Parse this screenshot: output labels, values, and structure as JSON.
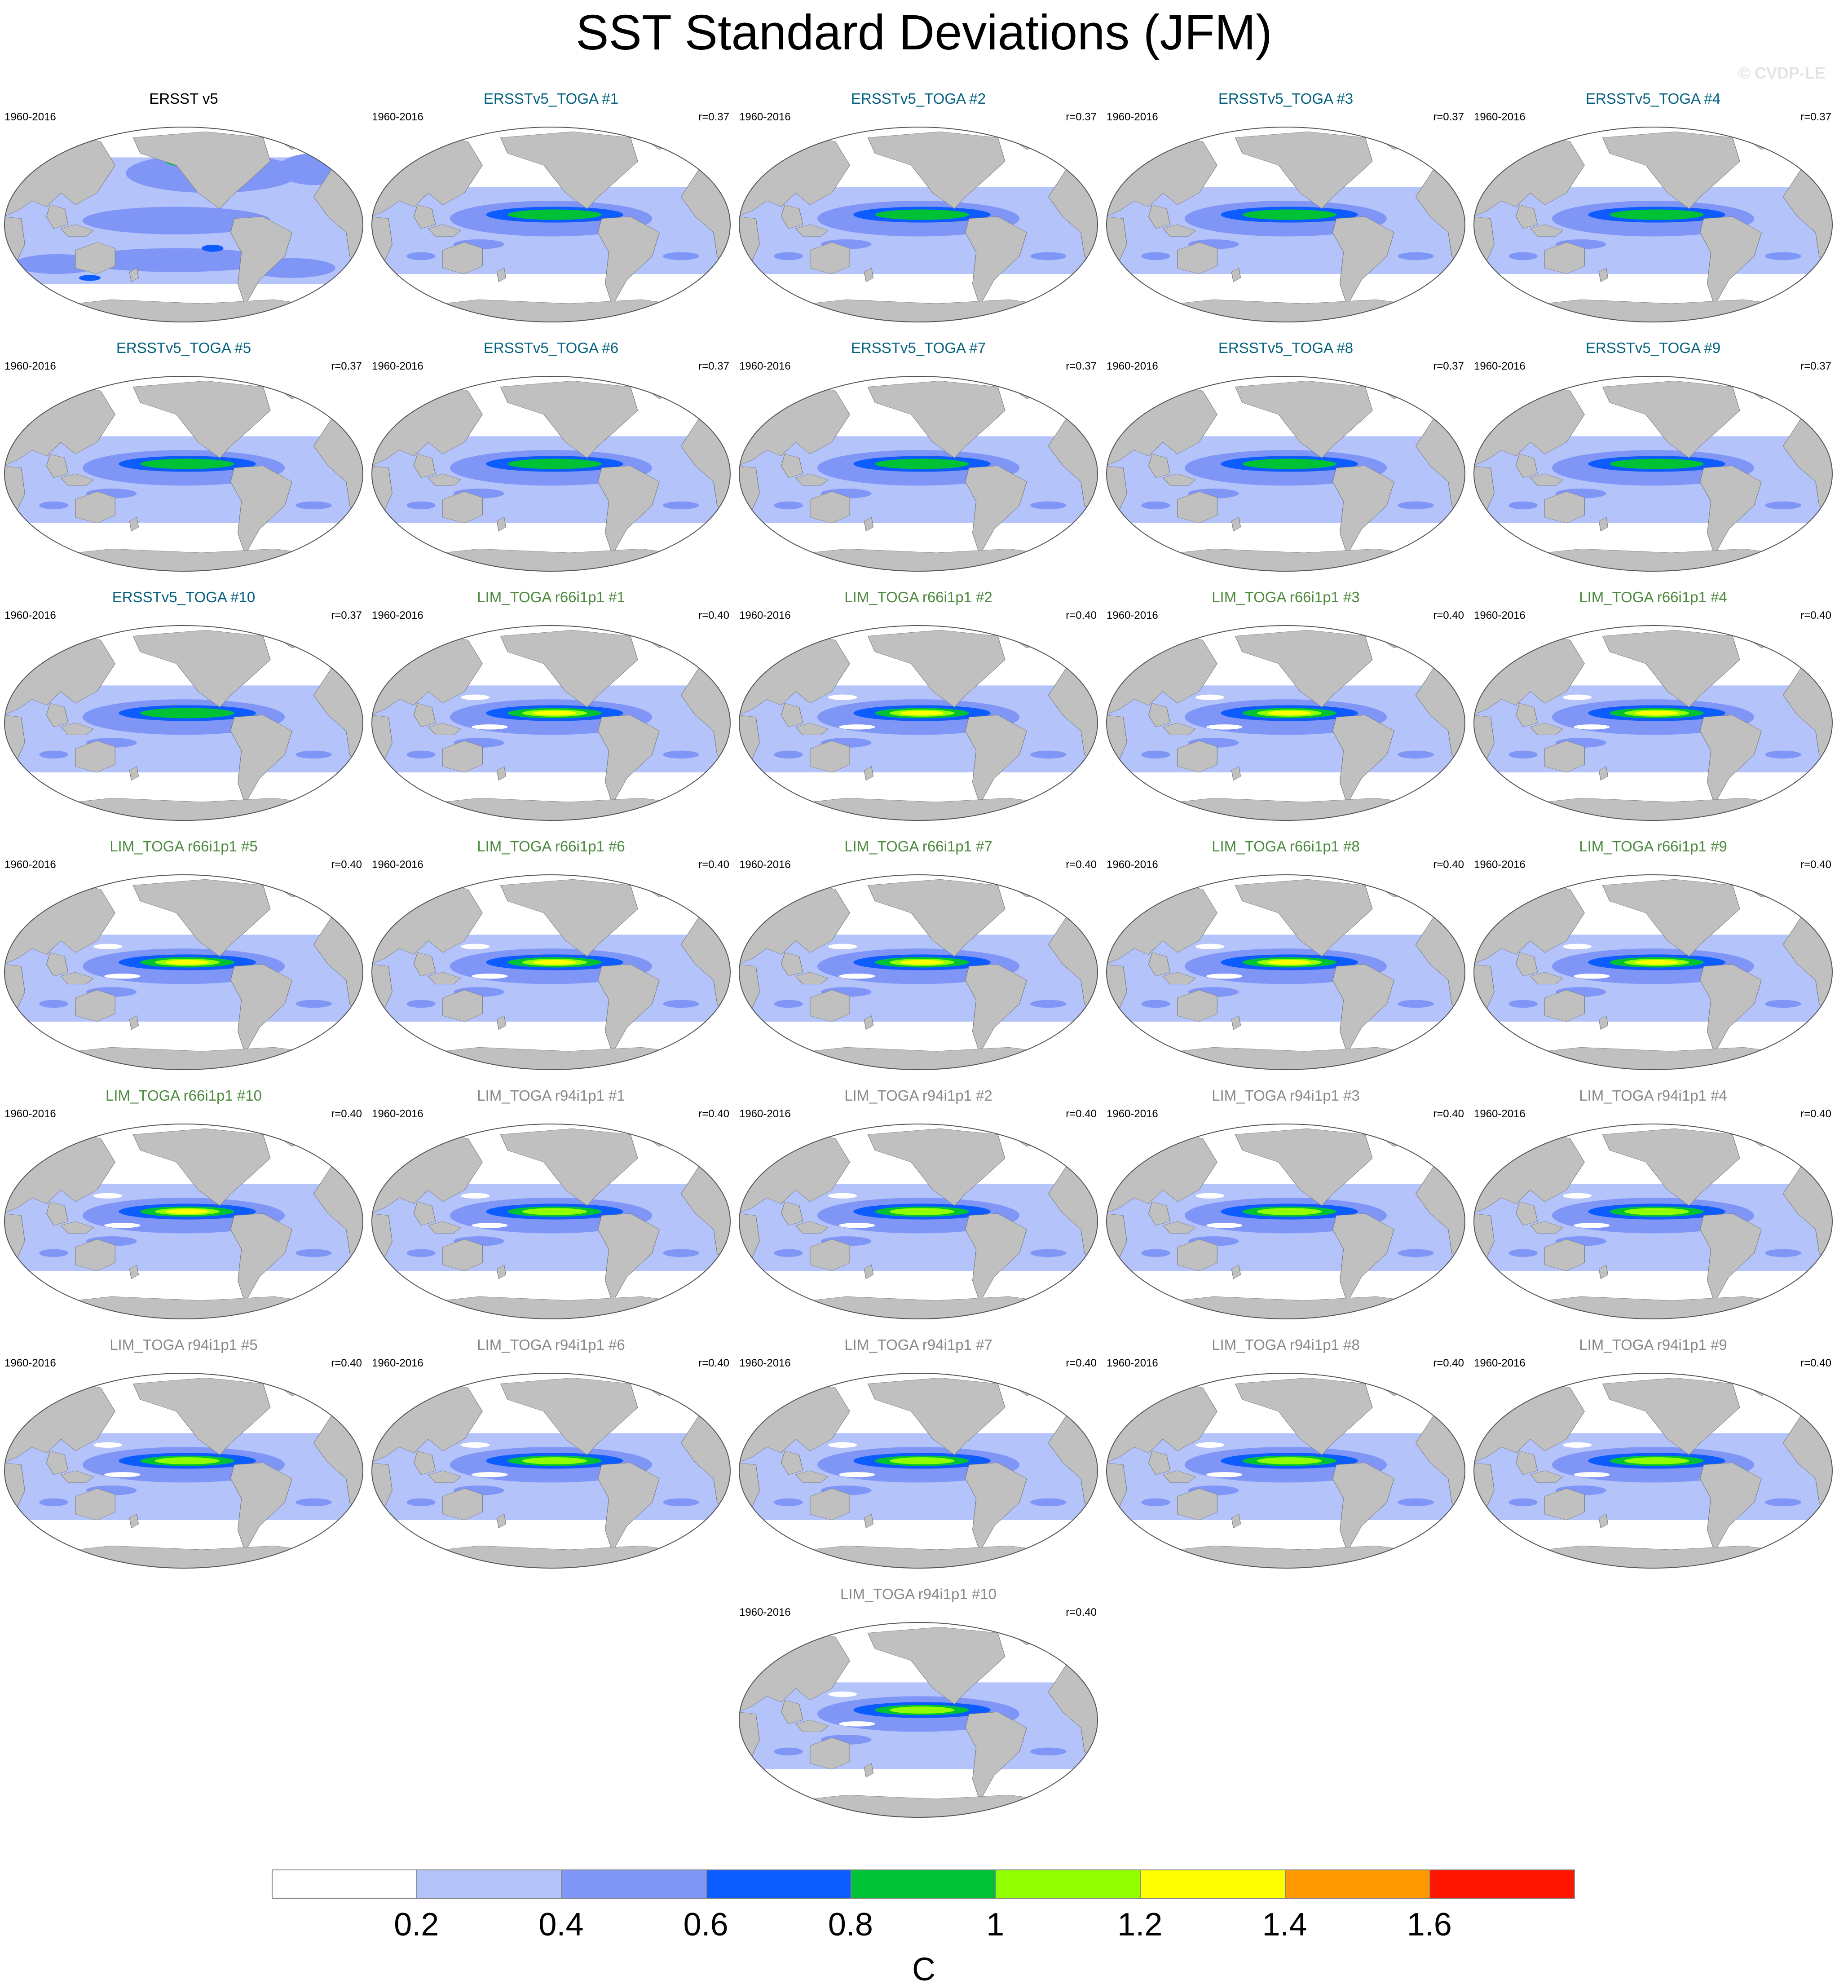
{
  "title": "SST Standard Deviations (JFM)",
  "watermark": "© CVDP-LE",
  "chart_data": {
    "type": "map_panel_grid",
    "title": "SST Standard Deviations (JFM)",
    "unit": "C",
    "colorbar": {
      "levels": [
        0.2,
        0.4,
        0.6,
        0.8,
        1,
        1.2,
        1.4,
        1.6
      ],
      "tick_labels": [
        "0.2",
        "0.4",
        "0.6",
        "0.8",
        "1",
        "1.2",
        "1.4",
        "1.6"
      ],
      "colors": [
        "#ffffff",
        "#b4c3fa",
        "#8096f7",
        "#0d5cff",
        "#00c234",
        "#92ff00",
        "#ffff00",
        "#ff9900",
        "#ff1500"
      ]
    },
    "land_color": "#c0c0c0",
    "group_colors": {
      "observation": "#000000",
      "ERSSTv5_TOGA": "#05627f",
      "LIM_TOGA r66i1p1": "#4c8a3e",
      "LIM_TOGA r94i1p1": "#888888"
    },
    "panels": [
      {
        "title": "ERSST v5",
        "group": "observation",
        "years": "1960-2016",
        "r": ""
      },
      {
        "title": "ERSSTv5_TOGA #1",
        "group": "ERSSTv5_TOGA",
        "years": "1960-2016",
        "r": "r=0.37"
      },
      {
        "title": "ERSSTv5_TOGA #2",
        "group": "ERSSTv5_TOGA",
        "years": "1960-2016",
        "r": "r=0.37"
      },
      {
        "title": "ERSSTv5_TOGA #3",
        "group": "ERSSTv5_TOGA",
        "years": "1960-2016",
        "r": "r=0.37"
      },
      {
        "title": "ERSSTv5_TOGA #4",
        "group": "ERSSTv5_TOGA",
        "years": "1960-2016",
        "r": "r=0.37"
      },
      {
        "title": "ERSSTv5_TOGA #5",
        "group": "ERSSTv5_TOGA",
        "years": "1960-2016",
        "r": "r=0.37"
      },
      {
        "title": "ERSSTv5_TOGA #6",
        "group": "ERSSTv5_TOGA",
        "years": "1960-2016",
        "r": "r=0.37"
      },
      {
        "title": "ERSSTv5_TOGA #7",
        "group": "ERSSTv5_TOGA",
        "years": "1960-2016",
        "r": "r=0.37"
      },
      {
        "title": "ERSSTv5_TOGA #8",
        "group": "ERSSTv5_TOGA",
        "years": "1960-2016",
        "r": "r=0.37"
      },
      {
        "title": "ERSSTv5_TOGA #9",
        "group": "ERSSTv5_TOGA",
        "years": "1960-2016",
        "r": "r=0.37"
      },
      {
        "title": "ERSSTv5_TOGA #10",
        "group": "ERSSTv5_TOGA",
        "years": "1960-2016",
        "r": "r=0.37"
      },
      {
        "title": "LIM_TOGA r66i1p1 #1",
        "group": "LIM_TOGA r66i1p1",
        "years": "1960-2016",
        "r": "r=0.40"
      },
      {
        "title": "LIM_TOGA r66i1p1 #2",
        "group": "LIM_TOGA r66i1p1",
        "years": "1960-2016",
        "r": "r=0.40"
      },
      {
        "title": "LIM_TOGA r66i1p1 #3",
        "group": "LIM_TOGA r66i1p1",
        "years": "1960-2016",
        "r": "r=0.40"
      },
      {
        "title": "LIM_TOGA r66i1p1 #4",
        "group": "LIM_TOGA r66i1p1",
        "years": "1960-2016",
        "r": "r=0.40"
      },
      {
        "title": "LIM_TOGA r66i1p1 #5",
        "group": "LIM_TOGA r66i1p1",
        "years": "1960-2016",
        "r": "r=0.40"
      },
      {
        "title": "LIM_TOGA r66i1p1 #6",
        "group": "LIM_TOGA r66i1p1",
        "years": "1960-2016",
        "r": "r=0.40"
      },
      {
        "title": "LIM_TOGA r66i1p1 #7",
        "group": "LIM_TOGA r66i1p1",
        "years": "1960-2016",
        "r": "r=0.40"
      },
      {
        "title": "LIM_TOGA r66i1p1 #8",
        "group": "LIM_TOGA r66i1p1",
        "years": "1960-2016",
        "r": "r=0.40"
      },
      {
        "title": "LIM_TOGA r66i1p1 #9",
        "group": "LIM_TOGA r66i1p1",
        "years": "1960-2016",
        "r": "r=0.40"
      },
      {
        "title": "LIM_TOGA r66i1p1 #10",
        "group": "LIM_TOGA r66i1p1",
        "years": "1960-2016",
        "r": "r=0.40"
      },
      {
        "title": "LIM_TOGA r94i1p1 #1",
        "group": "LIM_TOGA r94i1p1",
        "years": "1960-2016",
        "r": "r=0.40"
      },
      {
        "title": "LIM_TOGA r94i1p1 #2",
        "group": "LIM_TOGA r94i1p1",
        "years": "1960-2016",
        "r": "r=0.40"
      },
      {
        "title": "LIM_TOGA r94i1p1 #3",
        "group": "LIM_TOGA r94i1p1",
        "years": "1960-2016",
        "r": "r=0.40"
      },
      {
        "title": "LIM_TOGA r94i1p1 #4",
        "group": "LIM_TOGA r94i1p1",
        "years": "1960-2016",
        "r": "r=0.40"
      },
      {
        "title": "LIM_TOGA r94i1p1 #5",
        "group": "LIM_TOGA r94i1p1",
        "years": "1960-2016",
        "r": "r=0.40"
      },
      {
        "title": "LIM_TOGA r94i1p1 #6",
        "group": "LIM_TOGA r94i1p1",
        "years": "1960-2016",
        "r": "r=0.40"
      },
      {
        "title": "LIM_TOGA r94i1p1 #7",
        "group": "LIM_TOGA r94i1p1",
        "years": "1960-2016",
        "r": "r=0.40"
      },
      {
        "title": "LIM_TOGA r94i1p1 #8",
        "group": "LIM_TOGA r94i1p1",
        "years": "1960-2016",
        "r": "r=0.40"
      },
      {
        "title": "LIM_TOGA r94i1p1 #9",
        "group": "LIM_TOGA r94i1p1",
        "years": "1960-2016",
        "r": "r=0.40"
      },
      {
        "title": "LIM_TOGA r94i1p1 #10",
        "group": "LIM_TOGA r94i1p1",
        "years": "1960-2016",
        "r": "r=0.40"
      }
    ]
  }
}
